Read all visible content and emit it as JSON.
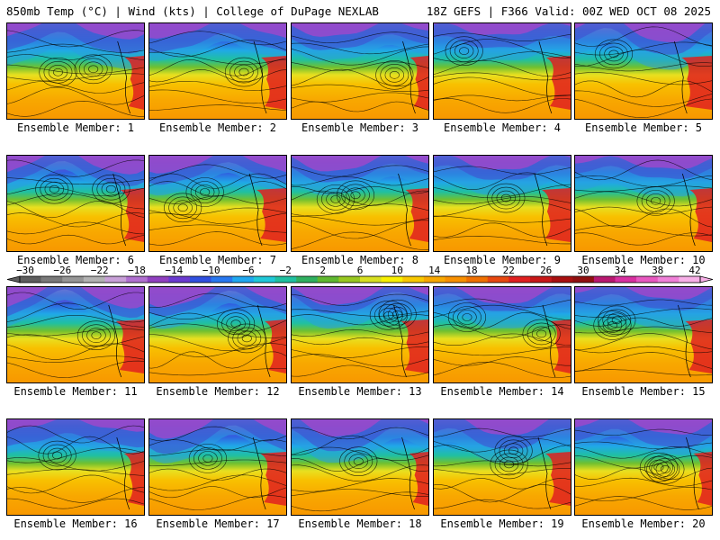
{
  "header": {
    "title": "850mb Temp (°C) | Wind (kts) | College of DuPage NEXLAB",
    "run_info": "18Z GEFS | F366 Valid: 00Z WED OCT 08 2025"
  },
  "members": [
    {
      "label": "Ensemble Member: 1"
    },
    {
      "label": "Ensemble Member: 2"
    },
    {
      "label": "Ensemble Member: 3"
    },
    {
      "label": "Ensemble Member: 4"
    },
    {
      "label": "Ensemble Member: 5"
    },
    {
      "label": "Ensemble Member: 6"
    },
    {
      "label": "Ensemble Member: 7"
    },
    {
      "label": "Ensemble Member: 8"
    },
    {
      "label": "Ensemble Member: 9"
    },
    {
      "label": "Ensemble Member: 10"
    },
    {
      "label": "Ensemble Member: 11"
    },
    {
      "label": "Ensemble Member: 12"
    },
    {
      "label": "Ensemble Member: 13"
    },
    {
      "label": "Ensemble Member: 14"
    },
    {
      "label": "Ensemble Member: 15"
    },
    {
      "label": "Ensemble Member: 16"
    },
    {
      "label": "Ensemble Member: 17"
    },
    {
      "label": "Ensemble Member: 18"
    },
    {
      "label": "Ensemble Member: 19"
    },
    {
      "label": "Ensemble Member: 20"
    }
  ],
  "colorbar": {
    "labels": [
      "−30",
      "−26",
      "−22",
      "−18",
      "−14",
      "−10",
      "−6",
      "−2",
      "2",
      "6",
      "10",
      "14",
      "18",
      "22",
      "26",
      "30",
      "34",
      "38",
      "42"
    ],
    "colors": [
      "#5e5e5e",
      "#7a7a7a",
      "#969696",
      "#b2b2b2",
      "#c8a0d8",
      "#b070d0",
      "#9040c0",
      "#6a3ad0",
      "#3050e0",
      "#2878f0",
      "#20a8f0",
      "#20c8d8",
      "#20c0a0",
      "#30b060",
      "#60b830",
      "#98c820",
      "#d8e020",
      "#f8f000",
      "#f8c800",
      "#f8a800",
      "#f89000",
      "#f07000",
      "#e84810",
      "#e02020",
      "#c81818",
      "#a81010",
      "#901010",
      "#b81870",
      "#d830a0",
      "#e858c0",
      "#f080d8",
      "#f8b0e8"
    ]
  }
}
